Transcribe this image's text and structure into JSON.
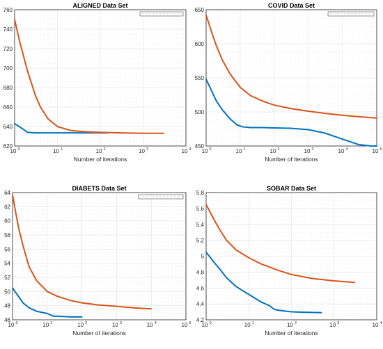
{
  "colors": {
    "series_1": "#0072bd",
    "series_2": "#d95319",
    "legend_entry": "#9a9a9a"
  },
  "chart_data": [
    {
      "type": "line",
      "title": "ALIGNED Data Set",
      "xlabel": "Number of iterations",
      "ylabel": "",
      "xscale": "log",
      "xlim": [
        1,
        10000
      ],
      "ylim": [
        620,
        760
      ],
      "yticks": [
        620,
        640,
        660,
        680,
        700,
        720,
        740,
        760
      ],
      "grid": true,
      "legend": "top-right",
      "series": [
        {
          "x": [
            1,
            1.5,
            2,
            3,
            5,
            10,
            20,
            50,
            150
          ],
          "y": [
            643,
            638,
            634,
            633.5,
            633.5,
            633.5,
            633.5,
            633.5,
            633.5
          ]
        },
        {
          "x": [
            1,
            1.3,
            2,
            3,
            4,
            6,
            10,
            20,
            50,
            100,
            300,
            1000,
            3000
          ],
          "y": [
            750,
            728,
            697,
            673,
            660,
            648,
            640,
            636,
            634.5,
            634,
            633.5,
            633,
            633
          ]
        }
      ]
    },
    {
      "type": "line",
      "title": "COVID Data Set",
      "xlabel": "Number of iterations",
      "ylabel": "",
      "xscale": "log",
      "xlim": [
        1,
        100000
      ],
      "ylim": [
        450,
        650
      ],
      "yticks": [
        450,
        500,
        550,
        600,
        650
      ],
      "grid": true,
      "legend": "top-right",
      "series": [
        {
          "x": [
            1,
            2,
            3,
            5,
            8,
            12,
            20,
            50,
            100,
            300,
            1000,
            3000,
            10000,
            30000,
            70000,
            100000
          ],
          "y": [
            548,
            516,
            503,
            490,
            481,
            478,
            477,
            477,
            476.5,
            476,
            474,
            469,
            460,
            452,
            450,
            450
          ]
        },
        {
          "x": [
            1,
            1.5,
            2,
            3,
            5,
            10,
            20,
            50,
            100,
            300,
            1000,
            3000,
            10000,
            30000,
            100000
          ],
          "y": [
            642,
            615,
            597,
            576,
            556,
            536,
            524,
            515,
            510,
            505,
            501,
            498,
            495,
            493,
            491
          ]
        }
      ]
    },
    {
      "type": "line",
      "title": "DIABETS Data Set",
      "xlabel": "Number of iterations",
      "ylabel": "",
      "xscale": "log",
      "xlim": [
        1,
        100000
      ],
      "ylim": [
        46,
        64
      ],
      "yticks": [
        46,
        48,
        50,
        52,
        54,
        56,
        58,
        60,
        62,
        64
      ],
      "grid": true,
      "legend": "top-right",
      "series": [
        {
          "x": [
            1,
            2,
            3,
            5,
            10,
            15,
            20,
            50,
            100
          ],
          "y": [
            50.5,
            48.4,
            47.7,
            47.2,
            46.9,
            46.5,
            46.5,
            46.4,
            46.4
          ]
        },
        {
          "x": [
            1,
            1.2,
            1.5,
            2,
            3,
            5,
            10,
            20,
            50,
            100,
            300,
            1000,
            3000,
            10000
          ],
          "y": [
            63.7,
            61.5,
            59,
            56.5,
            53.5,
            51.5,
            50,
            49.3,
            48.7,
            48.4,
            48.1,
            47.9,
            47.7,
            47.55
          ]
        }
      ]
    },
    {
      "type": "line",
      "title": "SOBAR Data Set",
      "xlabel": "Number of iterations",
      "ylabel": "",
      "xscale": "log",
      "xlim": [
        1,
        10000
      ],
      "ylim": [
        4.2,
        5.8
      ],
      "yticks": [
        4.2,
        4.4,
        4.6,
        4.8,
        5.0,
        5.2,
        5.4,
        5.6,
        5.8
      ],
      "grid": true,
      "legend": "none",
      "series": [
        {
          "x": [
            1,
            1.5,
            2,
            3,
            5,
            8,
            10,
            20,
            30,
            40,
            50,
            70,
            100,
            200,
            500
          ],
          "y": [
            5.05,
            4.93,
            4.85,
            4.73,
            4.62,
            4.55,
            4.52,
            4.42,
            4.38,
            4.33,
            4.32,
            4.31,
            4.3,
            4.295,
            4.29
          ]
        },
        {
          "x": [
            1,
            1.5,
            2,
            3,
            5,
            10,
            20,
            50,
            100,
            300,
            1000,
            3000
          ],
          "y": [
            5.65,
            5.47,
            5.35,
            5.2,
            5.08,
            4.98,
            4.9,
            4.82,
            4.77,
            4.72,
            4.69,
            4.67
          ]
        }
      ]
    }
  ]
}
